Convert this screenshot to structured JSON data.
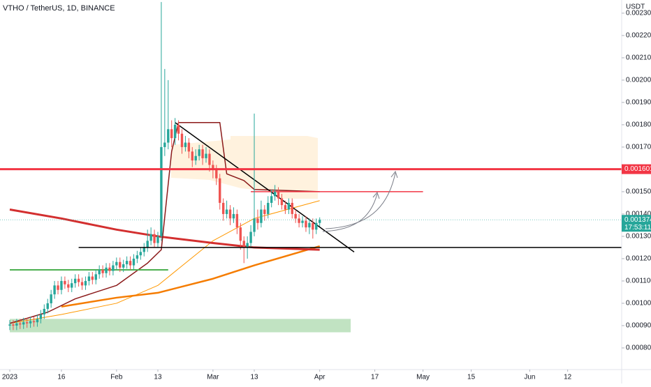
{
  "chart_data": {
    "type": "candlestick",
    "title": "VTHO / TetherUS, 1D, BINANCE",
    "y_axis_label": "USDT",
    "up_color": "#26a69a",
    "down_color": "#ef5350",
    "grid": false,
    "ylim": [
      0.000703,
      0.002359
    ],
    "yticks": [
      {
        "value": 0.0008,
        "label": "0.000800"
      },
      {
        "value": 0.0009,
        "label": "0.000900"
      },
      {
        "value": 0.001,
        "label": "0.001000"
      },
      {
        "value": 0.0011,
        "label": "0.001100"
      },
      {
        "value": 0.0012,
        "label": "0.001200"
      },
      {
        "value": 0.0013,
        "label": "0.001300"
      },
      {
        "value": 0.0014,
        "label": "0.001400"
      },
      {
        "value": 0.0015,
        "label": "0.001500"
      },
      {
        "value": 0.0017,
        "label": "0.001700"
      },
      {
        "value": 0.0018,
        "label": "0.001800"
      },
      {
        "value": 0.0019,
        "label": "0.001900"
      },
      {
        "value": 0.002,
        "label": "0.002000"
      },
      {
        "value": 0.0021,
        "label": "0.002100"
      },
      {
        "value": 0.0022,
        "label": "0.002200"
      },
      {
        "value": 0.0023,
        "label": "0.002300"
      }
    ],
    "xticks": [
      {
        "value": "2023-01-01",
        "label": "2023"
      },
      {
        "value": "2023-01-16",
        "label": "16"
      },
      {
        "value": "2023-02-01",
        "label": "Feb"
      },
      {
        "value": "2023-02-13",
        "label": "13"
      },
      {
        "value": "2023-03-01",
        "label": "Mar"
      },
      {
        "value": "2023-03-13",
        "label": "13"
      },
      {
        "value": "2023-04-01",
        "label": "Apr"
      },
      {
        "value": "2023-04-17",
        "label": "17"
      },
      {
        "value": "2023-05-01",
        "label": "May"
      },
      {
        "value": "2023-05-15",
        "label": "15"
      },
      {
        "value": "2023-06-01",
        "label": "Jun"
      },
      {
        "value": "2023-06-12",
        "label": "12"
      }
    ],
    "x": [
      "2023-01-01",
      "2023-01-02",
      "2023-01-03",
      "2023-01-04",
      "2023-01-05",
      "2023-01-06",
      "2023-01-07",
      "2023-01-08",
      "2023-01-09",
      "2023-01-10",
      "2023-01-11",
      "2023-01-12",
      "2023-01-13",
      "2023-01-14",
      "2023-01-15",
      "2023-01-16",
      "2023-01-17",
      "2023-01-18",
      "2023-01-19",
      "2023-01-20",
      "2023-01-21",
      "2023-01-22",
      "2023-01-23",
      "2023-01-24",
      "2023-01-25",
      "2023-01-26",
      "2023-01-27",
      "2023-01-28",
      "2023-01-29",
      "2023-01-30",
      "2023-01-31",
      "2023-02-01",
      "2023-02-02",
      "2023-02-03",
      "2023-02-04",
      "2023-02-05",
      "2023-02-06",
      "2023-02-07",
      "2023-02-08",
      "2023-02-09",
      "2023-02-10",
      "2023-02-11",
      "2023-02-12",
      "2023-02-13",
      "2023-02-14",
      "2023-02-15",
      "2023-02-16",
      "2023-02-17",
      "2023-02-18",
      "2023-02-19",
      "2023-02-20",
      "2023-02-21",
      "2023-02-22",
      "2023-02-23",
      "2023-02-24",
      "2023-02-25",
      "2023-02-26",
      "2023-02-27",
      "2023-02-28",
      "2023-03-01",
      "2023-03-02",
      "2023-03-03",
      "2023-03-04",
      "2023-03-05",
      "2023-03-06",
      "2023-03-07",
      "2023-03-08",
      "2023-03-09",
      "2023-03-10",
      "2023-03-11",
      "2023-03-12",
      "2023-03-13",
      "2023-03-14",
      "2023-03-15",
      "2023-03-16",
      "2023-03-17",
      "2023-03-18",
      "2023-03-19",
      "2023-03-20",
      "2023-03-21",
      "2023-03-22",
      "2023-03-23",
      "2023-03-24",
      "2023-03-25",
      "2023-03-26",
      "2023-03-27",
      "2023-03-28",
      "2023-03-29",
      "2023-03-30",
      "2023-03-31",
      "2023-04-01"
    ],
    "open": [
      0.0009,
      0.000905,
      0.0009,
      0.00091,
      0.000905,
      0.000915,
      0.00091,
      0.00092,
      0.000915,
      0.00093,
      0.00095,
      0.000975,
      0.001,
      0.00104,
      0.00108,
      0.00106,
      0.0011,
      0.001085,
      0.00107,
      0.00109,
      0.00111,
      0.001095,
      0.00108,
      0.0011,
      0.00112,
      0.001105,
      0.00113,
      0.00115,
      0.001135,
      0.00116,
      0.001145,
      0.00117,
      0.001185,
      0.00116,
      0.001175,
      0.00119,
      0.00117,
      0.0012,
      0.001215,
      0.00123,
      0.00125,
      0.00128,
      0.00131,
      0.00127,
      0.0013,
      0.0017,
      0.00172,
      0.00178,
      0.00174,
      0.0018,
      0.00176,
      0.0017,
      0.00172,
      0.00168,
      0.00164,
      0.00166,
      0.00169,
      0.00165,
      0.00167,
      0.00162,
      0.0016,
      0.00156,
      0.00145,
      0.0014,
      0.00142,
      0.00138,
      0.0014,
      0.00134,
      0.00128,
      0.00125,
      0.00127,
      0.00132,
      0.00138,
      0.00136,
      0.00142,
      0.0014,
      0.00145,
      0.00148,
      0.0015,
      0.00147,
      0.00144,
      0.00142,
      0.00145,
      0.0014,
      0.00138,
      0.00136,
      0.00137,
      0.00134,
      0.00136,
      0.00133,
      0.00136
    ],
    "high": [
      0.000925,
      0.000925,
      0.00093,
      0.00093,
      0.000935,
      0.000935,
      0.00094,
      0.00094,
      0.00095,
      0.00097,
      0.000995,
      0.00102,
      0.00106,
      0.0011,
      0.0011,
      0.00112,
      0.00112,
      0.001105,
      0.00111,
      0.00113,
      0.00113,
      0.001115,
      0.00112,
      0.00114,
      0.00114,
      0.00115,
      0.00117,
      0.00117,
      0.00118,
      0.00118,
      0.00119,
      0.001205,
      0.001205,
      0.001195,
      0.00121,
      0.00121,
      0.00122,
      0.001235,
      0.00125,
      0.00127,
      0.00133,
      0.00134,
      0.00133,
      0.00132,
      0.00235,
      0.00205,
      0.002,
      0.00182,
      0.00183,
      0.00182,
      0.00178,
      0.00175,
      0.00174,
      0.0017,
      0.00169,
      0.00171,
      0.00171,
      0.0017,
      0.00169,
      0.00164,
      0.00162,
      0.00158,
      0.00147,
      0.00146,
      0.00144,
      0.00143,
      0.00142,
      0.00136,
      0.0013,
      0.0013,
      0.00135,
      0.00185,
      0.00142,
      0.00146,
      0.00144,
      0.00148,
      0.00151,
      0.00153,
      0.00152,
      0.00149,
      0.00146,
      0.00147,
      0.00147,
      0.00142,
      0.0014,
      0.00139,
      0.00139,
      0.00138,
      0.00138,
      0.00138,
      0.001385
    ],
    "low": [
      0.00088,
      0.00088,
      0.00088,
      0.000885,
      0.000885,
      0.00089,
      0.00089,
      0.000895,
      0.000895,
      0.00091,
      0.00093,
      0.000955,
      0.00098,
      0.00102,
      0.00104,
      0.00104,
      0.001065,
      0.00105,
      0.00105,
      0.00107,
      0.001075,
      0.00106,
      0.00106,
      0.00108,
      0.001085,
      0.001085,
      0.00111,
      0.001115,
      0.001115,
      0.001125,
      0.001125,
      0.00115,
      0.00114,
      0.00114,
      0.001155,
      0.00115,
      0.00115,
      0.00118,
      0.001195,
      0.00121,
      0.00123,
      0.00126,
      0.00125,
      0.00125,
      0.00128,
      0.00166,
      0.00169,
      0.0017,
      0.00171,
      0.00173,
      0.00167,
      0.00168,
      0.00165,
      0.00161,
      0.00162,
      0.00164,
      0.00162,
      0.00163,
      0.00159,
      0.00156,
      0.00153,
      0.00142,
      0.00137,
      0.00138,
      0.00135,
      0.00136,
      0.00131,
      0.00124,
      0.00118,
      0.0012,
      0.00125,
      0.0013,
      0.00133,
      0.00134,
      0.00137,
      0.00138,
      0.00143,
      0.00146,
      0.00144,
      0.00142,
      0.0014,
      0.0014,
      0.00138,
      0.00136,
      0.00134,
      0.00134,
      0.00132,
      0.00131,
      0.00129,
      0.00131,
      0.001345
    ],
    "close": [
      0.000905,
      0.0009,
      0.00091,
      0.000905,
      0.000915,
      0.00091,
      0.00092,
      0.000915,
      0.00093,
      0.00095,
      0.000975,
      0.001,
      0.00104,
      0.00108,
      0.00106,
      0.0011,
      0.001085,
      0.00107,
      0.00109,
      0.00111,
      0.001095,
      0.00108,
      0.0011,
      0.00112,
      0.001105,
      0.00113,
      0.00115,
      0.001135,
      0.00116,
      0.001145,
      0.00117,
      0.001185,
      0.00116,
      0.001175,
      0.00119,
      0.00117,
      0.0012,
      0.001215,
      0.00123,
      0.00125,
      0.00128,
      0.00131,
      0.00127,
      0.0013,
      0.0017,
      0.00172,
      0.00178,
      0.00174,
      0.0018,
      0.00176,
      0.0017,
      0.00172,
      0.00168,
      0.00164,
      0.00166,
      0.00169,
      0.00165,
      0.00167,
      0.00162,
      0.0016,
      0.00156,
      0.00145,
      0.0014,
      0.00142,
      0.00138,
      0.0014,
      0.00134,
      0.00128,
      0.00125,
      0.00127,
      0.00132,
      0.00138,
      0.00136,
      0.00142,
      0.0014,
      0.00145,
      0.00148,
      0.0015,
      0.00147,
      0.00144,
      0.00142,
      0.00145,
      0.0014,
      0.00138,
      0.00136,
      0.00137,
      0.00134,
      0.00136,
      0.00133,
      0.00136,
      0.001374
    ],
    "zones": [
      {
        "from": "2023-01-01",
        "to": "2023-04-10",
        "y": [
          0.00087,
          0.00093
        ],
        "color": "rgba(76,175,80,0.35)"
      }
    ],
    "lines": [
      {
        "color": "#ff9800",
        "width": 1,
        "x": [
          "2023-01-01",
          "2023-01-16",
          "2023-02-01",
          "2023-02-13",
          "2023-03-01",
          "2023-03-13",
          "2023-04-01"
        ],
        "values": [
          0.00091,
          0.00095,
          0.001,
          0.00108,
          0.00128,
          0.00138,
          0.00146
        ]
      },
      {
        "color": "#f57c00",
        "width": 2.5,
        "x": [
          "2023-01-16",
          "2023-02-01",
          "2023-02-13",
          "2023-03-01",
          "2023-03-13",
          "2023-04-01"
        ],
        "values": [
          0.000985,
          0.001025,
          0.001047,
          0.00111,
          0.00117,
          0.001256
        ]
      },
      {
        "color": "#d32f2f",
        "width": 3,
        "x": [
          "2023-01-01",
          "2023-01-16",
          "2023-02-01",
          "2023-02-13",
          "2023-03-01",
          "2023-03-13",
          "2023-04-01"
        ],
        "values": [
          0.00142,
          0.00138,
          0.00133,
          0.0013,
          0.00127,
          0.00125,
          0.00124
        ]
      },
      {
        "color": "#8b1a1a",
        "width": 1.5,
        "x": [
          "2023-01-01",
          "2023-01-12",
          "2023-01-20",
          "2023-02-01",
          "2023-02-10",
          "2023-02-14",
          "2023-02-17",
          "2023-02-19",
          "2023-03-03",
          "2023-03-05",
          "2023-03-10",
          "2023-03-13",
          "2023-04-01"
        ],
        "values": [
          0.00091,
          0.00096,
          0.00102,
          0.00108,
          0.00118,
          0.00124,
          0.00168,
          0.00181,
          0.00181,
          0.00158,
          0.00155,
          0.00151,
          0.0015
        ]
      },
      {
        "color": "#000000",
        "width": 1.5,
        "x": [
          "2023-02-18",
          "2023-04-11"
        ],
        "values": [
          0.00181,
          0.00123
        ]
      },
      {
        "color": "#f23645",
        "width": 1.5,
        "x": [
          "2023-03-12",
          "2023-05-01"
        ],
        "values": [
          0.0015,
          0.0015
        ]
      },
      {
        "color": "#4caf50",
        "width": 2,
        "x": [
          "2023-01-01",
          "2023-02-16"
        ],
        "values": [
          0.00115,
          0.00115
        ]
      }
    ],
    "hlines": [
      {
        "value": 0.001601,
        "color": "#f23645",
        "width": 3,
        "labeled": true
      },
      {
        "value": 0.00125,
        "color": "#000000",
        "width": 1.5,
        "from": "2023-01-21",
        "labeled": false
      }
    ],
    "last_price": 0.001374,
    "last_price_color": "#26a69a",
    "countdown": "17:53:11"
  }
}
